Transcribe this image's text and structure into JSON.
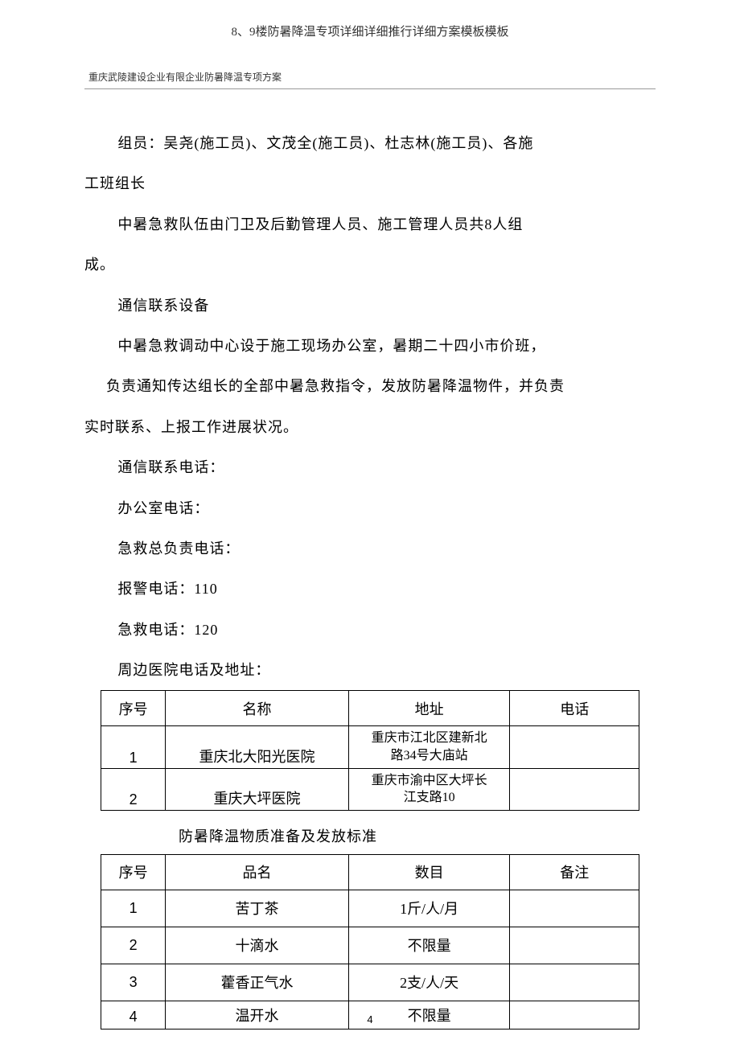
{
  "header": {
    "title": "8、9楼防暑降温专项详细详细推行详细方案模板模板",
    "subtitle": "重庆武陵建设企业有限企业防暑降温专项方案"
  },
  "paragraphs": {
    "p1a": "组员：吴尧(施工员)、文茂全(施工员)、杜志林(施工员)、各施",
    "p1b": "工班组长",
    "p2a": "中暑急救队伍由门卫及后勤管理人员、施工管理人员共8人组",
    "p2b": "成。",
    "p3": "通信联系设备",
    "p4": "中暑急救调动中心设于施工现场办公室，暑期二十四小市价班，",
    "p5a": "负责通知传达组长的全部中暑急救指令，发放防暑降温物件，并负责",
    "p5b": "实时联系、上报工作进展状况。",
    "p6": "通信联系电话：",
    "p7": "办公室电话：",
    "p8": "急救总负责电话：",
    "p9": "报警电话：110",
    "p10": "急救电话：120",
    "p11": "周边医院电话及地址："
  },
  "table1": {
    "headers": {
      "seq": "序号",
      "name": "名称",
      "addr": "地址",
      "tel": "电话"
    },
    "rows": [
      {
        "seq": "1",
        "name": "重庆北大阳光医院",
        "addr_l1": "重庆市江北区建新北",
        "addr_l2": "路34号大庙站",
        "tel": ""
      },
      {
        "seq": "2",
        "name": "重庆大坪医院",
        "addr_l1": "重庆市渝中区大坪长",
        "addr_l2": "江支路10",
        "tel": ""
      }
    ]
  },
  "table2_title": "防暑降温物质准备及发放标准",
  "table2": {
    "headers": {
      "seq": "序号",
      "name": "品名",
      "qty": "数目",
      "note": "备注"
    },
    "rows": [
      {
        "seq": "1",
        "name": "苦丁茶",
        "qty": "1斤/人/月",
        "note": ""
      },
      {
        "seq": "2",
        "name": "十滴水",
        "qty": "不限量",
        "note": ""
      },
      {
        "seq": "3",
        "name": "藿香正气水",
        "qty": "2支/人/天",
        "note": ""
      },
      {
        "seq": "4",
        "name": "温开水",
        "qty": "不限量",
        "note": ""
      }
    ]
  },
  "page_number": "4"
}
